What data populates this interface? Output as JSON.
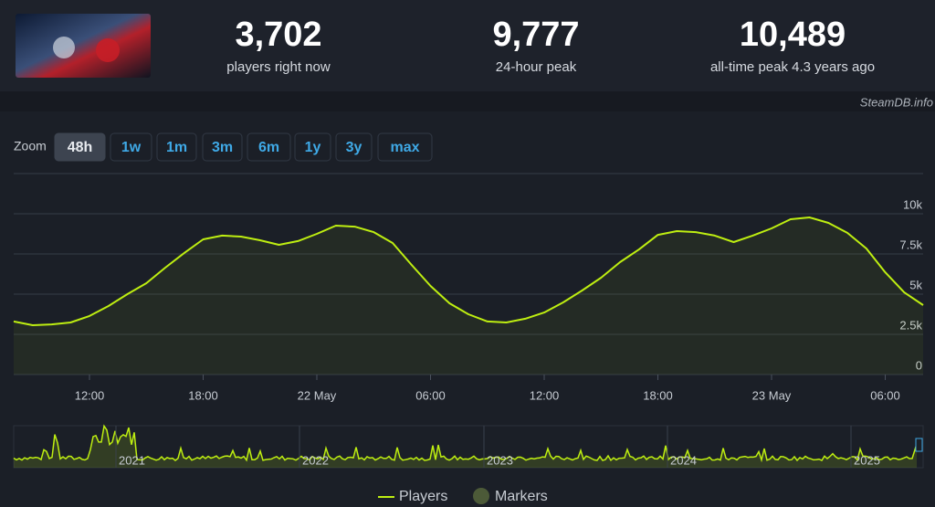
{
  "header": {
    "stats": [
      {
        "value": "3,702",
        "label": "players right now"
      },
      {
        "value": "9,777",
        "label": "24-hour peak"
      },
      {
        "value": "10,489",
        "label": "all-time peak 4.3 years ago"
      }
    ],
    "watermark": "SteamDB.info"
  },
  "zoom": {
    "label": "Zoom",
    "buttons": [
      "48h",
      "1w",
      "1m",
      "3m",
      "6m",
      "1y",
      "3y",
      "max"
    ],
    "active": "48h"
  },
  "chart_data": {
    "type": "line",
    "categories": [
      null,
      null,
      null,
      null,
      "12:00",
      null,
      null,
      null,
      null,
      null,
      "18:00",
      null,
      null,
      null,
      null,
      null,
      "22 May",
      null,
      null,
      null,
      null,
      null,
      "06:00",
      null,
      null,
      null,
      null,
      null,
      "12:00",
      null,
      null,
      null,
      null,
      null,
      "18:00",
      null,
      null,
      null,
      null,
      null,
      "23 May",
      null,
      null,
      null,
      null,
      null,
      "06:00",
      null,
      null
    ],
    "series": [
      {
        "name": "Players",
        "color": "#beee11",
        "values": [
          3300,
          3070,
          3120,
          3240,
          3640,
          4260,
          5000,
          5680,
          6650,
          7560,
          8410,
          8640,
          8580,
          8350,
          8070,
          8300,
          8750,
          9260,
          9200,
          8860,
          8180,
          6820,
          5510,
          4430,
          3750,
          3300,
          3240,
          3470,
          3860,
          4490,
          5230,
          6020,
          6990,
          7780,
          8690,
          8920,
          8860,
          8640,
          8240,
          8640,
          9090,
          9660,
          9770,
          9430,
          8810,
          7840,
          6360,
          5110,
          4320
        ]
      }
    ],
    "markers": {
      "name": "Markers",
      "color": "#4c5a38"
    },
    "ylim": [
      0,
      12500
    ],
    "yticks": [
      0,
      {
        "value": 2500,
        "label": "2.5k"
      },
      {
        "value": 5000,
        "label": "5k"
      },
      {
        "value": 7500,
        "label": "7.5k"
      },
      {
        "value": 10000,
        "label": "10k"
      }
    ],
    "grid": true,
    "navigator": {
      "labels": [
        "2021",
        "2022",
        "2023",
        "2024",
        "2025"
      ]
    }
  }
}
